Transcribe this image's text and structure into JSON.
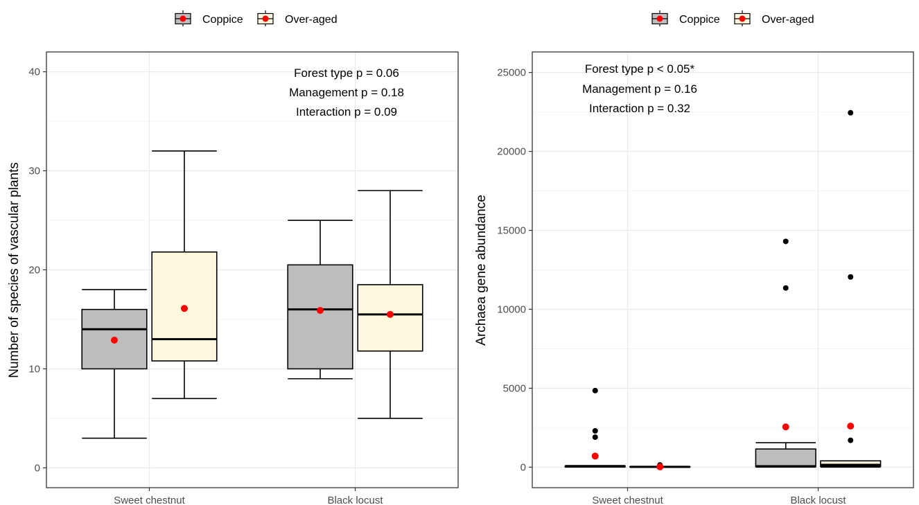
{
  "chart_data": [
    {
      "type": "box",
      "ylabel": "Number of species of vascular plants",
      "categories": [
        "Sweet chestnut",
        "Black locust"
      ],
      "ylim": [
        -2,
        42
      ],
      "yticks": [
        0,
        10,
        20,
        30,
        40
      ],
      "legend": {
        "placement": "top",
        "items": [
          "Coppice",
          "Over-aged"
        ]
      },
      "annotations": [
        "Forest type p = 0.06",
        "Management p = 0.18",
        "Interaction p = 0.09"
      ],
      "series": [
        {
          "name": "Coppice",
          "boxes": [
            {
              "category": "Sweet chestnut",
              "min": 3,
              "q1": 10,
              "median": 14,
              "q3": 16,
              "max": 18,
              "mean": 12.9,
              "outliers": []
            },
            {
              "category": "Black locust",
              "min": 9,
              "q1": 10,
              "median": 16,
              "q3": 20.5,
              "max": 25,
              "mean": 15.9,
              "outliers": []
            }
          ]
        },
        {
          "name": "Over-aged",
          "boxes": [
            {
              "category": "Sweet chestnut",
              "min": 7,
              "q1": 10.8,
              "median": 13,
              "q3": 21.8,
              "max": 32,
              "mean": 16.1,
              "outliers": []
            },
            {
              "category": "Black locust",
              "min": 5,
              "q1": 11.8,
              "median": 15.5,
              "q3": 18.5,
              "max": 28,
              "mean": 15.5,
              "outliers": []
            }
          ]
        }
      ]
    },
    {
      "type": "box",
      "ylabel": "Archaea gene abundance",
      "categories": [
        "Sweet chestnut",
        "Black locust"
      ],
      "ylim": [
        -1300,
        26300
      ],
      "yticks": [
        0,
        5000,
        10000,
        15000,
        20000,
        25000
      ],
      "legend": {
        "placement": "top",
        "items": [
          "Coppice",
          "Over-aged"
        ]
      },
      "annotations": [
        "Forest type p < 0.05*",
        "Management p = 0.16",
        "Interaction p = 0.32"
      ],
      "series": [
        {
          "name": "Coppice",
          "boxes": [
            {
              "category": "Sweet chestnut",
              "min": 0,
              "q1": 20,
              "median": 40,
              "q3": 70,
              "max": 100,
              "mean": 700,
              "outliers": [
                4850,
                2300,
                1900
              ]
            },
            {
              "category": "Black locust",
              "min": 0,
              "q1": 30,
              "median": 60,
              "q3": 1150,
              "max": 1550,
              "mean": 2550,
              "outliers": [
                14300,
                11350
              ]
            }
          ]
        },
        {
          "name": "Over-aged",
          "boxes": [
            {
              "category": "Sweet chestnut",
              "min": 0,
              "q1": 5,
              "median": 15,
              "q3": 30,
              "max": 50,
              "mean": 20,
              "outliers": [
                140
              ]
            },
            {
              "category": "Black locust",
              "min": 0,
              "q1": 50,
              "median": 150,
              "q3": 400,
              "max": 400,
              "mean": 2600,
              "outliers": [
                22450,
                12050,
                1700
              ]
            }
          ]
        }
      ]
    }
  ],
  "colors": {
    "coppice_fill": "#bdbdbd",
    "overaged_fill": "#fcf7dd",
    "mean_point": "#ff0000",
    "outlier_point": "#000000",
    "grid_major": "#ebebeb",
    "grid_minor": "#f4f4f4",
    "axis_text": "#4d4d4d"
  }
}
